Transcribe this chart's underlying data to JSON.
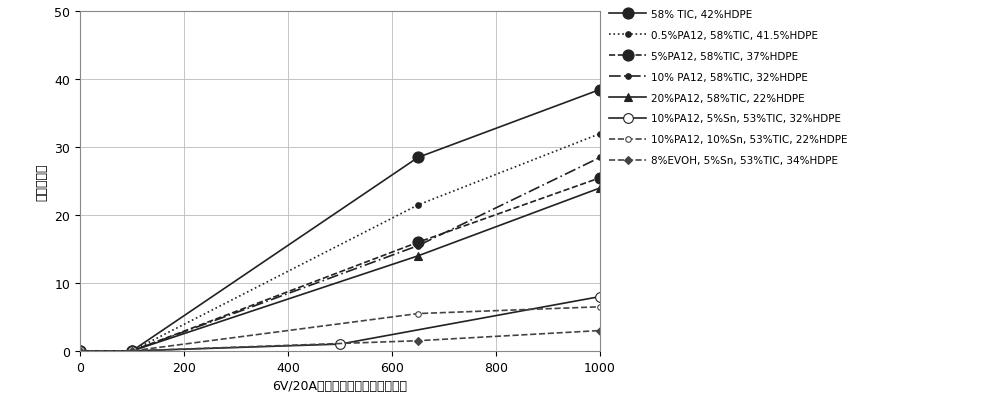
{
  "xlabel": "6V/20A多次过电流动作测试，次数",
  "ylabel": "电阵，欧姆",
  "xlim": [
    0,
    1000
  ],
  "ylim": [
    0,
    50
  ],
  "xticks": [
    0,
    200,
    400,
    600,
    800,
    1000
  ],
  "yticks": [
    0,
    10,
    20,
    30,
    40,
    50
  ],
  "series": [
    {
      "label": "58% TIC, 42%HDPE",
      "x": [
        0,
        100,
        650,
        1000
      ],
      "y": [
        0,
        0,
        28.5,
        38.5
      ],
      "color": "#222222",
      "linestyle": "solid",
      "marker": "o",
      "markersize": 8,
      "linewidth": 1.2,
      "fillstyle": "full"
    },
    {
      "label": "0.5%PA12, 58%TIC, 41.5%HDPE",
      "x": [
        0,
        100,
        650,
        1000
      ],
      "y": [
        0,
        0,
        21.5,
        32.0
      ],
      "color": "#222222",
      "linestyle": "dotted",
      "marker": "o",
      "markersize": 4,
      "linewidth": 1.2,
      "fillstyle": "full"
    },
    {
      "label": "5%PA12, 58%TIC, 37%HDPE",
      "x": [
        0,
        100,
        650,
        1000
      ],
      "y": [
        0,
        0,
        16.0,
        25.5
      ],
      "color": "#222222",
      "linestyle": "dashed",
      "marker": "o",
      "markersize": 8,
      "linewidth": 1.2,
      "fillstyle": "full"
    },
    {
      "label": "10% PA12, 58%TIC, 32%HDPE",
      "x": [
        0,
        100,
        650,
        1000
      ],
      "y": [
        0,
        0,
        15.5,
        28.5
      ],
      "color": "#222222",
      "linestyle": "dashdot",
      "marker": "o",
      "markersize": 4,
      "linewidth": 1.2,
      "fillstyle": "full"
    },
    {
      "label": "20%PA12, 58%TIC, 22%HDPE",
      "x": [
        0,
        100,
        650,
        1000
      ],
      "y": [
        0,
        0,
        14.0,
        24.0
      ],
      "color": "#222222",
      "linestyle": "solid",
      "marker": "^",
      "markersize": 6,
      "linewidth": 1.2,
      "fillstyle": "full"
    },
    {
      "label": "10%PA12, 5%Sn, 53%TIC, 32%HDPE",
      "x": [
        0,
        100,
        500,
        1000
      ],
      "y": [
        0,
        0,
        1.0,
        8.0
      ],
      "color": "#222222",
      "linestyle": "solid",
      "marker": "o",
      "markersize": 7,
      "linewidth": 1.2,
      "fillstyle": "none"
    },
    {
      "label": "10%PA12, 10%Sn, 53%TIC, 22%HDPE",
      "x": [
        0,
        100,
        650,
        1000
      ],
      "y": [
        0,
        0,
        5.5,
        6.5
      ],
      "color": "#444444",
      "linestyle": "dashed",
      "marker": "o",
      "markersize": 4,
      "linewidth": 1.2,
      "fillstyle": "none"
    },
    {
      "label": "8%EVOH, 5%Sn, 53%TIC, 34%HDPE",
      "x": [
        0,
        100,
        650,
        1000
      ],
      "y": [
        0,
        0,
        1.5,
        3.0
      ],
      "color": "#444444",
      "linestyle": "dashed",
      "marker": "D",
      "markersize": 4,
      "linewidth": 1.2,
      "fillstyle": "full"
    }
  ],
  "background_color": "#ffffff",
  "grid_color": "#bbbbbb",
  "legend_fontsize": 7.5,
  "axis_fontsize": 9,
  "tick_fontsize": 9,
  "legend_labelspacing": 1.05
}
